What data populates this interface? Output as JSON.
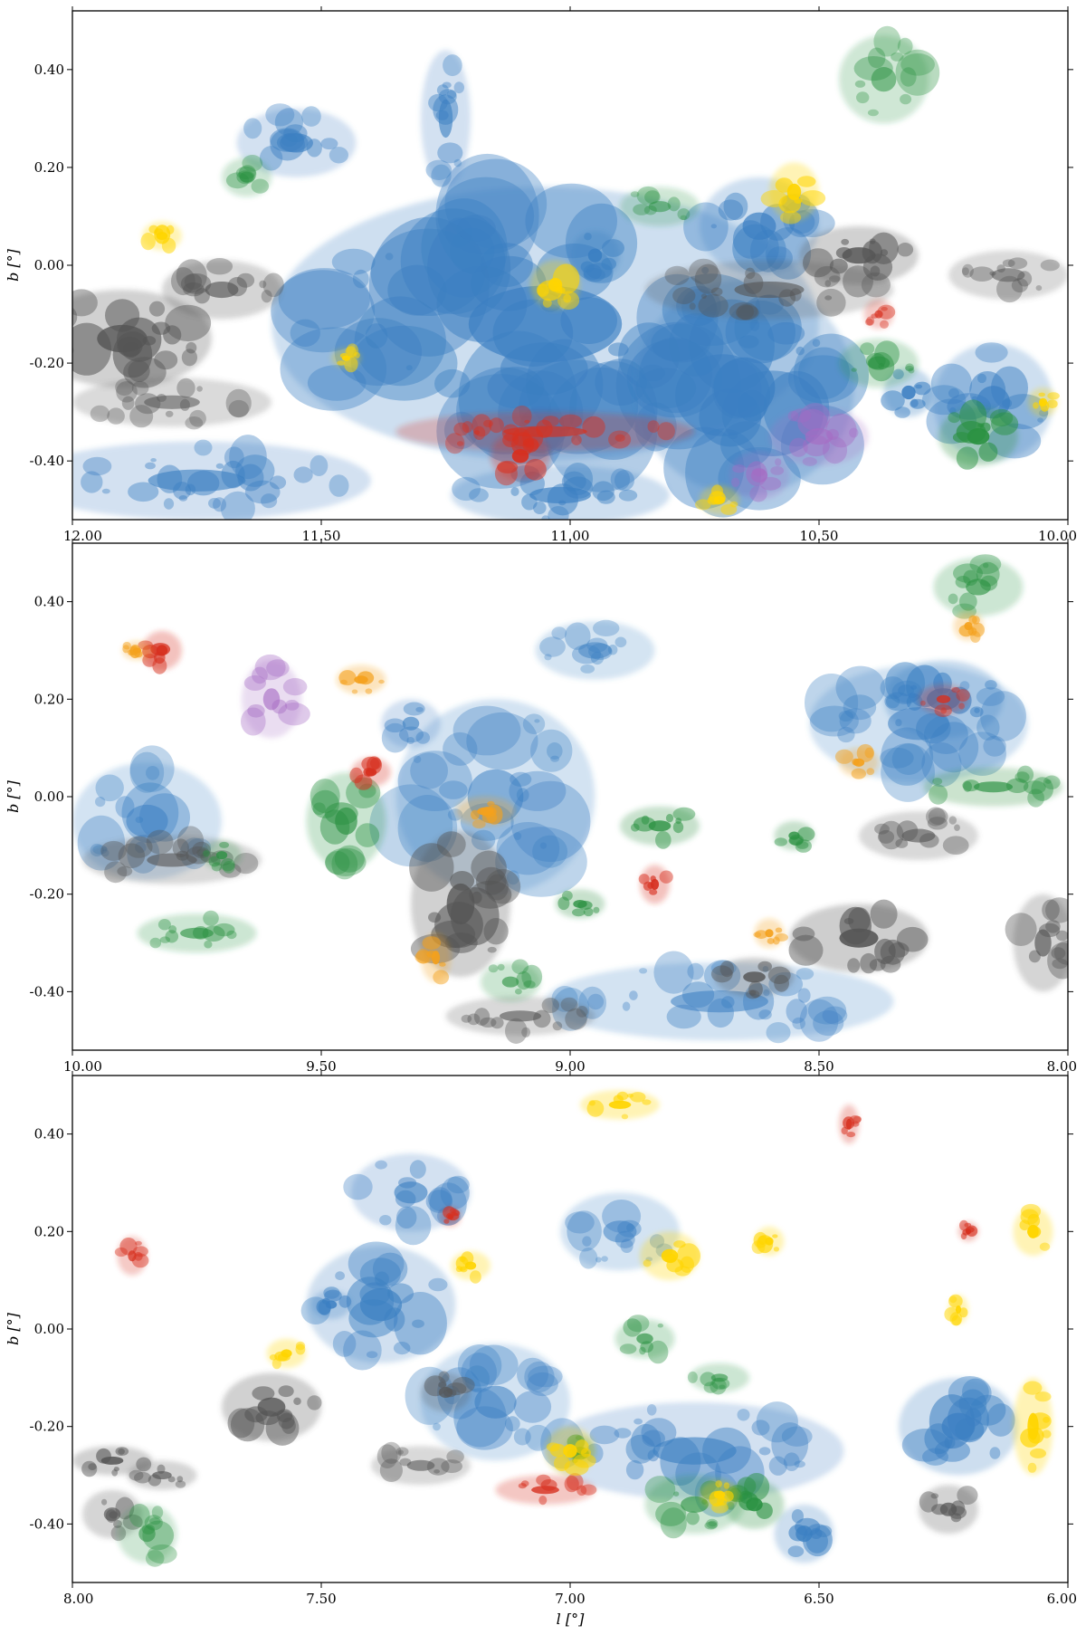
{
  "chart_data": [
    {
      "type": "heatmap",
      "panel": "top",
      "xlim": [
        12.0,
        10.0
      ],
      "ylim": [
        -0.52,
        0.52
      ],
      "xticks": [
        12.0,
        11.5,
        11.0,
        10.5,
        10.0
      ],
      "xtick_labels": [
        "12.00",
        "11.50",
        "11.00",
        "10.50",
        "10.00"
      ],
      "yticks": [
        0.4,
        0.2,
        0.0,
        -0.2,
        -0.4
      ],
      "ytick_labels": [
        "0.40",
        "0.20",
        "0.00",
        "-0.20",
        "-0.40"
      ],
      "xlabel": "",
      "ylabel": "b [°]",
      "grid": false,
      "colors": {
        "blue": "#3b7fc2",
        "grey": "#555555",
        "green": "#2a9141",
        "red": "#d7301f",
        "orange": "#f4a11c",
        "yellow": "#ffd500",
        "purple": "#a66bc4"
      },
      "structures": [
        {
          "color": "blue",
          "l": 11.05,
          "b": -0.12,
          "dl": 0.55,
          "db": 0.28,
          "intensity": 0.55
        },
        {
          "color": "blue",
          "l": 10.65,
          "b": -0.25,
          "dl": 0.22,
          "db": 0.22,
          "intensity": 0.65
        },
        {
          "color": "blue",
          "l": 11.75,
          "b": -0.44,
          "dl": 0.35,
          "db": 0.08,
          "intensity": 0.45
        },
        {
          "color": "blue",
          "l": 11.55,
          "b": 0.25,
          "dl": 0.12,
          "db": 0.07,
          "intensity": 0.45
        },
        {
          "color": "blue",
          "l": 11.25,
          "b": 0.3,
          "dl": 0.05,
          "db": 0.14,
          "intensity": 0.45
        },
        {
          "color": "blue",
          "l": 10.62,
          "b": 0.08,
          "dl": 0.12,
          "db": 0.1,
          "intensity": 0.6
        },
        {
          "color": "blue",
          "l": 10.95,
          "b": 0.02,
          "dl": 0.05,
          "db": 0.05,
          "intensity": 0.95
        },
        {
          "color": "blue",
          "l": 11.02,
          "b": -0.47,
          "dl": 0.22,
          "db": 0.06,
          "intensity": 0.55
        },
        {
          "color": "blue",
          "l": 10.15,
          "b": -0.28,
          "dl": 0.12,
          "db": 0.12,
          "intensity": 0.6
        },
        {
          "color": "blue",
          "l": 10.32,
          "b": -0.26,
          "dl": 0.05,
          "db": 0.05,
          "intensity": 0.9
        },
        {
          "color": "grey",
          "l": 11.9,
          "b": -0.15,
          "dl": 0.18,
          "db": 0.1,
          "intensity": 0.75
        },
        {
          "color": "grey",
          "l": 11.7,
          "b": -0.05,
          "dl": 0.12,
          "db": 0.06,
          "intensity": 0.5
        },
        {
          "color": "grey",
          "l": 11.8,
          "b": -0.28,
          "dl": 0.2,
          "db": 0.05,
          "intensity": 0.35
        },
        {
          "color": "grey",
          "l": 10.6,
          "b": -0.05,
          "dl": 0.25,
          "db": 0.06,
          "intensity": 0.45
        },
        {
          "color": "grey",
          "l": 10.42,
          "b": 0.02,
          "dl": 0.12,
          "db": 0.06,
          "intensity": 0.8
        },
        {
          "color": "grey",
          "l": 10.12,
          "b": -0.02,
          "dl": 0.12,
          "db": 0.05,
          "intensity": 0.35
        },
        {
          "color": "green",
          "l": 10.18,
          "b": -0.35,
          "dl": 0.08,
          "db": 0.06,
          "intensity": 0.95
        },
        {
          "color": "green",
          "l": 10.38,
          "b": -0.2,
          "dl": 0.08,
          "db": 0.05,
          "intensity": 0.45
        },
        {
          "color": "green",
          "l": 10.37,
          "b": 0.38,
          "dl": 0.09,
          "db": 0.09,
          "intensity": 0.3
        },
        {
          "color": "green",
          "l": 10.82,
          "b": 0.12,
          "dl": 0.08,
          "db": 0.04,
          "intensity": 0.3
        },
        {
          "color": "green",
          "l": 11.65,
          "b": 0.18,
          "dl": 0.05,
          "db": 0.04,
          "intensity": 0.3
        },
        {
          "color": "red",
          "l": 11.1,
          "b": -0.39,
          "dl": 0.06,
          "db": 0.05,
          "intensity": 0.95
        },
        {
          "color": "red",
          "l": 11.05,
          "b": -0.34,
          "dl": 0.3,
          "db": 0.04,
          "intensity": 0.55
        },
        {
          "color": "red",
          "l": 10.38,
          "b": -0.1,
          "dl": 0.03,
          "db": 0.03,
          "intensity": 0.6
        },
        {
          "color": "yellow",
          "l": 11.03,
          "b": -0.04,
          "dl": 0.05,
          "db": 0.05,
          "intensity": 0.95
        },
        {
          "color": "yellow",
          "l": 10.55,
          "b": 0.15,
          "dl": 0.05,
          "db": 0.06,
          "intensity": 0.95
        },
        {
          "color": "yellow",
          "l": 11.82,
          "b": 0.06,
          "dl": 0.04,
          "db": 0.03,
          "intensity": 0.95
        },
        {
          "color": "yellow",
          "l": 11.45,
          "b": -0.19,
          "dl": 0.03,
          "db": 0.02,
          "intensity": 0.95
        },
        {
          "color": "yellow",
          "l": 10.7,
          "b": -0.48,
          "dl": 0.04,
          "db": 0.03,
          "intensity": 0.95
        },
        {
          "color": "yellow",
          "l": 10.05,
          "b": -0.28,
          "dl": 0.03,
          "db": 0.03,
          "intensity": 0.95
        },
        {
          "color": "purple",
          "l": 10.5,
          "b": -0.35,
          "dl": 0.1,
          "db": 0.06,
          "intensity": 0.45
        },
        {
          "color": "purple",
          "l": 10.62,
          "b": -0.43,
          "dl": 0.06,
          "db": 0.05,
          "intensity": 0.45
        }
      ]
    },
    {
      "type": "heatmap",
      "panel": "middle",
      "xlim": [
        10.0,
        8.0
      ],
      "ylim": [
        -0.52,
        0.52
      ],
      "xticks": [
        10.0,
        9.5,
        9.0,
        8.5,
        8.0
      ],
      "xtick_labels": [
        "10.00",
        "9.50",
        "9.00",
        "8.50",
        "8.00"
      ],
      "yticks": [
        0.4,
        0.2,
        0.0,
        -0.2,
        -0.4
      ],
      "ytick_labels": [
        "0.40",
        "0.20",
        "0.00",
        "-0.20",
        "-0.40"
      ],
      "xlabel": "",
      "ylabel": "b [°]",
      "grid": false,
      "colors": {
        "blue": "#3b7fc2",
        "grey": "#555555",
        "green": "#2a9141",
        "red": "#d7301f",
        "orange": "#f4a11c",
        "yellow": "#ffd500",
        "purple": "#a66bc4"
      },
      "structures": [
        {
          "color": "blue",
          "l": 8.25,
          "b": 0.2,
          "dl": 0.12,
          "db": 0.08,
          "intensity": 0.8
        },
        {
          "color": "blue",
          "l": 8.3,
          "b": 0.15,
          "dl": 0.22,
          "db": 0.12,
          "intensity": 0.35
        },
        {
          "color": "blue",
          "l": 9.15,
          "b": 0.0,
          "dl": 0.2,
          "db": 0.2,
          "intensity": 0.3
        },
        {
          "color": "blue",
          "l": 9.32,
          "b": 0.15,
          "dl": 0.06,
          "db": 0.05,
          "intensity": 0.45
        },
        {
          "color": "blue",
          "l": 9.85,
          "b": -0.05,
          "dl": 0.15,
          "db": 0.12,
          "intensity": 0.3
        },
        {
          "color": "blue",
          "l": 8.7,
          "b": -0.42,
          "dl": 0.35,
          "db": 0.08,
          "intensity": 0.35
        },
        {
          "color": "blue",
          "l": 8.95,
          "b": 0.3,
          "dl": 0.12,
          "db": 0.06,
          "intensity": 0.25
        },
        {
          "color": "grey",
          "l": 9.22,
          "b": -0.22,
          "dl": 0.1,
          "db": 0.15,
          "intensity": 0.75
        },
        {
          "color": "grey",
          "l": 8.42,
          "b": -0.29,
          "dl": 0.14,
          "db": 0.07,
          "intensity": 0.9
        },
        {
          "color": "grey",
          "l": 8.63,
          "b": -0.37,
          "dl": 0.08,
          "db": 0.04,
          "intensity": 0.8
        },
        {
          "color": "grey",
          "l": 9.8,
          "b": -0.13,
          "dl": 0.18,
          "db": 0.05,
          "intensity": 0.45
        },
        {
          "color": "grey",
          "l": 8.3,
          "b": -0.08,
          "dl": 0.12,
          "db": 0.05,
          "intensity": 0.45
        },
        {
          "color": "grey",
          "l": 8.05,
          "b": -0.3,
          "dl": 0.06,
          "db": 0.1,
          "intensity": 0.55
        },
        {
          "color": "grey",
          "l": 9.1,
          "b": -0.45,
          "dl": 0.15,
          "db": 0.04,
          "intensity": 0.45
        },
        {
          "color": "green",
          "l": 8.18,
          "b": 0.43,
          "dl": 0.09,
          "db": 0.06,
          "intensity": 0.45
        },
        {
          "color": "green",
          "l": 8.82,
          "b": -0.06,
          "dl": 0.08,
          "db": 0.04,
          "intensity": 0.75
        },
        {
          "color": "green",
          "l": 8.15,
          "b": 0.02,
          "dl": 0.14,
          "db": 0.04,
          "intensity": 0.55
        },
        {
          "color": "green",
          "l": 9.45,
          "b": -0.05,
          "dl": 0.08,
          "db": 0.1,
          "intensity": 0.5
        },
        {
          "color": "green",
          "l": 9.75,
          "b": -0.28,
          "dl": 0.12,
          "db": 0.04,
          "intensity": 0.45
        },
        {
          "color": "green",
          "l": 8.98,
          "b": -0.22,
          "dl": 0.05,
          "db": 0.03,
          "intensity": 0.75
        },
        {
          "color": "green",
          "l": 9.12,
          "b": -0.38,
          "dl": 0.06,
          "db": 0.04,
          "intensity": 0.45
        },
        {
          "color": "green",
          "l": 9.7,
          "b": -0.12,
          "dl": 0.04,
          "db": 0.03,
          "intensity": 0.7
        },
        {
          "color": "green",
          "l": 8.55,
          "b": -0.08,
          "dl": 0.04,
          "db": 0.03,
          "intensity": 0.75
        },
        {
          "color": "red",
          "l": 9.82,
          "b": 0.3,
          "dl": 0.04,
          "db": 0.04,
          "intensity": 0.95
        },
        {
          "color": "red",
          "l": 9.4,
          "b": 0.05,
          "dl": 0.04,
          "db": 0.03,
          "intensity": 0.95
        },
        {
          "color": "red",
          "l": 8.83,
          "b": -0.18,
          "dl": 0.03,
          "db": 0.04,
          "intensity": 0.95
        },
        {
          "color": "red",
          "l": 8.25,
          "b": 0.2,
          "dl": 0.05,
          "db": 0.03,
          "intensity": 0.75
        },
        {
          "color": "orange",
          "l": 9.42,
          "b": 0.24,
          "dl": 0.05,
          "db": 0.03,
          "intensity": 0.95
        },
        {
          "color": "orange",
          "l": 9.17,
          "b": -0.03,
          "dl": 0.06,
          "db": 0.03,
          "intensity": 0.95
        },
        {
          "color": "orange",
          "l": 9.27,
          "b": -0.33,
          "dl": 0.03,
          "db": 0.05,
          "intensity": 0.95
        },
        {
          "color": "orange",
          "l": 8.42,
          "b": 0.07,
          "dl": 0.04,
          "db": 0.03,
          "intensity": 0.95
        },
        {
          "color": "orange",
          "l": 8.2,
          "b": 0.35,
          "dl": 0.03,
          "db": 0.03,
          "intensity": 0.95
        },
        {
          "color": "orange",
          "l": 8.6,
          "b": -0.28,
          "dl": 0.03,
          "db": 0.03,
          "intensity": 0.95
        },
        {
          "color": "orange",
          "l": 9.87,
          "b": 0.3,
          "dl": 0.03,
          "db": 0.02,
          "intensity": 0.95
        },
        {
          "color": "purple",
          "l": 9.6,
          "b": 0.2,
          "dl": 0.06,
          "db": 0.08,
          "intensity": 0.45
        }
      ]
    },
    {
      "type": "heatmap",
      "panel": "bottom",
      "xlim": [
        8.0,
        6.0
      ],
      "ylim": [
        -0.52,
        0.52
      ],
      "xticks": [
        8.0,
        7.5,
        7.0,
        6.5,
        6.0
      ],
      "xtick_labels": [
        "8.00",
        "7.50",
        "7.00",
        "6.50",
        "6.00"
      ],
      "yticks": [
        0.4,
        0.2,
        0.0,
        -0.2,
        -0.4
      ],
      "ytick_labels": [
        "0.40",
        "0.20",
        "0.00",
        "-0.20",
        "-0.40"
      ],
      "xlabel": "l [°]",
      "ylabel": "b [°]",
      "grid": false,
      "colors": {
        "blue": "#3b7fc2",
        "grey": "#555555",
        "green": "#2a9141",
        "red": "#d7301f",
        "orange": "#f4a11c",
        "yellow": "#ffd500",
        "purple": "#a66bc4"
      },
      "structures": [
        {
          "color": "blue",
          "l": 7.32,
          "b": 0.28,
          "dl": 0.12,
          "db": 0.08,
          "intensity": 0.45
        },
        {
          "color": "blue",
          "l": 7.38,
          "b": 0.05,
          "dl": 0.15,
          "db": 0.12,
          "intensity": 0.5
        },
        {
          "color": "blue",
          "l": 7.48,
          "b": 0.05,
          "dl": 0.04,
          "db": 0.03,
          "intensity": 0.85
        },
        {
          "color": "blue",
          "l": 6.75,
          "b": -0.25,
          "dl": 0.3,
          "db": 0.1,
          "intensity": 0.45
        },
        {
          "color": "blue",
          "l": 6.22,
          "b": -0.2,
          "dl": 0.12,
          "db": 0.1,
          "intensity": 0.65
        },
        {
          "color": "blue",
          "l": 6.53,
          "b": -0.42,
          "dl": 0.06,
          "db": 0.06,
          "intensity": 0.7
        },
        {
          "color": "blue",
          "l": 7.15,
          "b": -0.15,
          "dl": 0.15,
          "db": 0.12,
          "intensity": 0.35
        },
        {
          "color": "blue",
          "l": 6.9,
          "b": 0.2,
          "dl": 0.12,
          "db": 0.08,
          "intensity": 0.3
        },
        {
          "color": "grey",
          "l": 7.6,
          "b": -0.16,
          "dl": 0.1,
          "db": 0.07,
          "intensity": 0.75
        },
        {
          "color": "grey",
          "l": 7.92,
          "b": -0.27,
          "dl": 0.08,
          "db": 0.03,
          "intensity": 0.85
        },
        {
          "color": "grey",
          "l": 7.82,
          "b": -0.3,
          "dl": 0.07,
          "db": 0.03,
          "intensity": 0.55
        },
        {
          "color": "grey",
          "l": 6.24,
          "b": -0.37,
          "dl": 0.06,
          "db": 0.05,
          "intensity": 0.65
        },
        {
          "color": "grey",
          "l": 7.92,
          "b": -0.38,
          "dl": 0.06,
          "db": 0.05,
          "intensity": 0.5
        },
        {
          "color": "grey",
          "l": 7.25,
          "b": -0.13,
          "dl": 0.05,
          "db": 0.04,
          "intensity": 0.6
        },
        {
          "color": "grey",
          "l": 7.3,
          "b": -0.28,
          "dl": 0.1,
          "db": 0.04,
          "intensity": 0.4
        },
        {
          "color": "green",
          "l": 6.63,
          "b": -0.36,
          "dl": 0.06,
          "db": 0.05,
          "intensity": 0.9
        },
        {
          "color": "green",
          "l": 6.75,
          "b": -0.36,
          "dl": 0.1,
          "db": 0.06,
          "intensity": 0.45
        },
        {
          "color": "green",
          "l": 6.85,
          "b": -0.02,
          "dl": 0.06,
          "db": 0.04,
          "intensity": 0.5
        },
        {
          "color": "green",
          "l": 7.85,
          "b": -0.42,
          "dl": 0.06,
          "db": 0.06,
          "intensity": 0.35
        },
        {
          "color": "green",
          "l": 6.98,
          "b": -0.25,
          "dl": 0.03,
          "db": 0.03,
          "intensity": 0.85
        },
        {
          "color": "green",
          "l": 6.7,
          "b": -0.1,
          "dl": 0.06,
          "db": 0.03,
          "intensity": 0.4
        },
        {
          "color": "red",
          "l": 7.88,
          "b": 0.15,
          "dl": 0.03,
          "db": 0.04,
          "intensity": 0.65
        },
        {
          "color": "red",
          "l": 7.05,
          "b": -0.33,
          "dl": 0.1,
          "db": 0.03,
          "intensity": 0.75
        },
        {
          "color": "red",
          "l": 7.24,
          "b": 0.23,
          "dl": 0.02,
          "db": 0.02,
          "intensity": 0.95
        },
        {
          "color": "red",
          "l": 6.2,
          "b": 0.2,
          "dl": 0.02,
          "db": 0.02,
          "intensity": 0.95
        },
        {
          "color": "red",
          "l": 6.44,
          "b": 0.42,
          "dl": 0.02,
          "db": 0.04,
          "intensity": 0.8
        },
        {
          "color": "yellow",
          "l": 7.0,
          "b": -0.25,
          "dl": 0.05,
          "db": 0.05,
          "intensity": 0.95
        },
        {
          "color": "yellow",
          "l": 6.8,
          "b": 0.15,
          "dl": 0.06,
          "db": 0.05,
          "intensity": 0.95
        },
        {
          "color": "yellow",
          "l": 6.07,
          "b": 0.2,
          "dl": 0.04,
          "db": 0.05,
          "intensity": 0.95
        },
        {
          "color": "yellow",
          "l": 6.07,
          "b": -0.2,
          "dl": 0.04,
          "db": 0.1,
          "intensity": 0.95
        },
        {
          "color": "yellow",
          "l": 7.2,
          "b": 0.13,
          "dl": 0.04,
          "db": 0.03,
          "intensity": 0.95
        },
        {
          "color": "yellow",
          "l": 6.7,
          "b": -0.34,
          "dl": 0.04,
          "db": 0.03,
          "intensity": 0.95
        },
        {
          "color": "yellow",
          "l": 7.57,
          "b": -0.05,
          "dl": 0.04,
          "db": 0.03,
          "intensity": 0.95
        },
        {
          "color": "yellow",
          "l": 6.9,
          "b": 0.46,
          "dl": 0.08,
          "db": 0.03,
          "intensity": 0.95
        },
        {
          "color": "yellow",
          "l": 6.22,
          "b": 0.04,
          "dl": 0.02,
          "db": 0.03,
          "intensity": 0.95
        },
        {
          "color": "yellow",
          "l": 6.6,
          "b": 0.18,
          "dl": 0.03,
          "db": 0.03,
          "intensity": 0.95
        }
      ]
    }
  ]
}
